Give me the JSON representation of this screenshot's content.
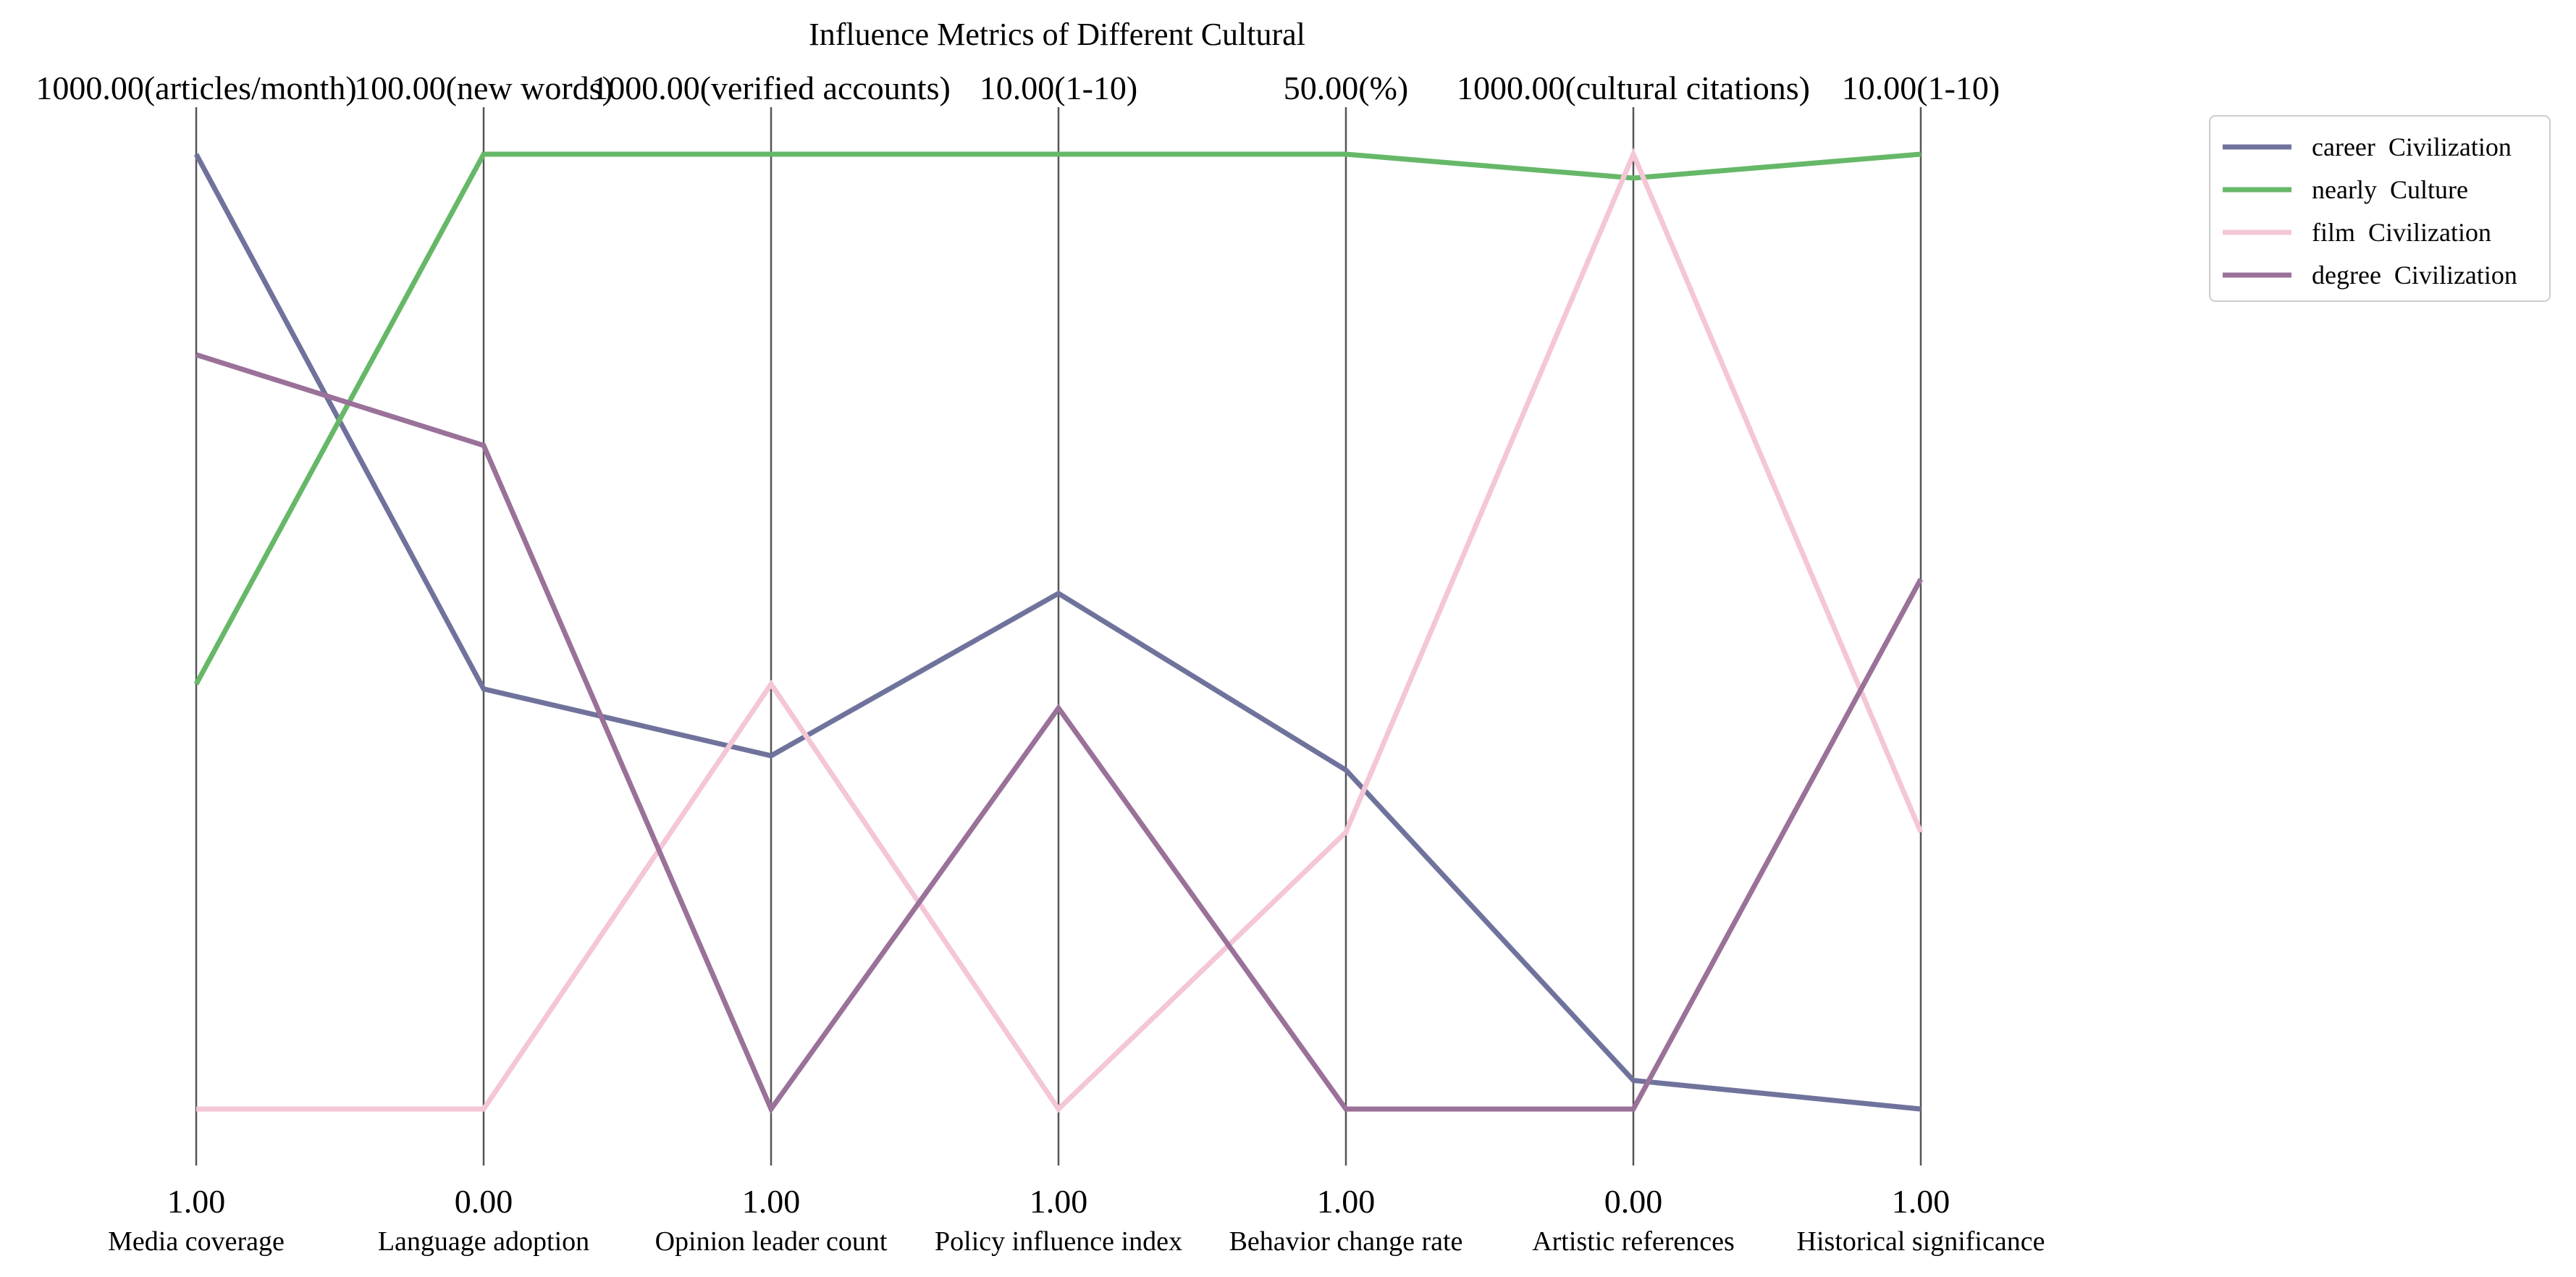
{
  "chart_data": {
    "type": "parallel-coordinates",
    "title": "Influence Metrics of Different Cultural",
    "axes": [
      {
        "name": "Media coverage",
        "top_label": "1000.00(articles/month)",
        "bottom_label": "1.00"
      },
      {
        "name": "Language adoption",
        "top_label": "100.00(new words)",
        "bottom_label": "0.00"
      },
      {
        "name": "Opinion leader count",
        "top_label": "1000.00(verified accounts)",
        "bottom_label": "1.00"
      },
      {
        "name": "Policy influence index",
        "top_label": "10.00(1-10)",
        "bottom_label": "1.00"
      },
      {
        "name": "Behavior change rate",
        "top_label": "50.00(%)",
        "bottom_label": "1.00"
      },
      {
        "name": "Artistic references",
        "top_label": "1000.00(cultural citations)",
        "bottom_label": "0.00"
      },
      {
        "name": "Historical significance",
        "top_label": "10.00(1-10)",
        "bottom_label": "1.00"
      }
    ],
    "normalized_range": [
      0,
      1
    ],
    "series": [
      {
        "name": "career  Civilization",
        "color": "#6f739c",
        "values": [
          1.0,
          0.44,
          0.37,
          0.54,
          0.355,
          0.03,
          0.0
        ]
      },
      {
        "name": "nearly  Culture",
        "color": "#66b868",
        "values": [
          0.445,
          1.0,
          1.0,
          1.0,
          1.0,
          0.975,
          1.0
        ]
      },
      {
        "name": "film  Civilization",
        "color": "#f4c6d6",
        "values": [
          0.0,
          0.0,
          0.445,
          0.0,
          0.29,
          1.0,
          0.29
        ]
      },
      {
        "name": "degree  Civilization",
        "color": "#9a7199",
        "values": [
          0.79,
          0.695,
          0.0,
          0.42,
          0.0,
          0.0,
          0.555
        ]
      }
    ],
    "legend_position": "top-right",
    "grid": false
  }
}
